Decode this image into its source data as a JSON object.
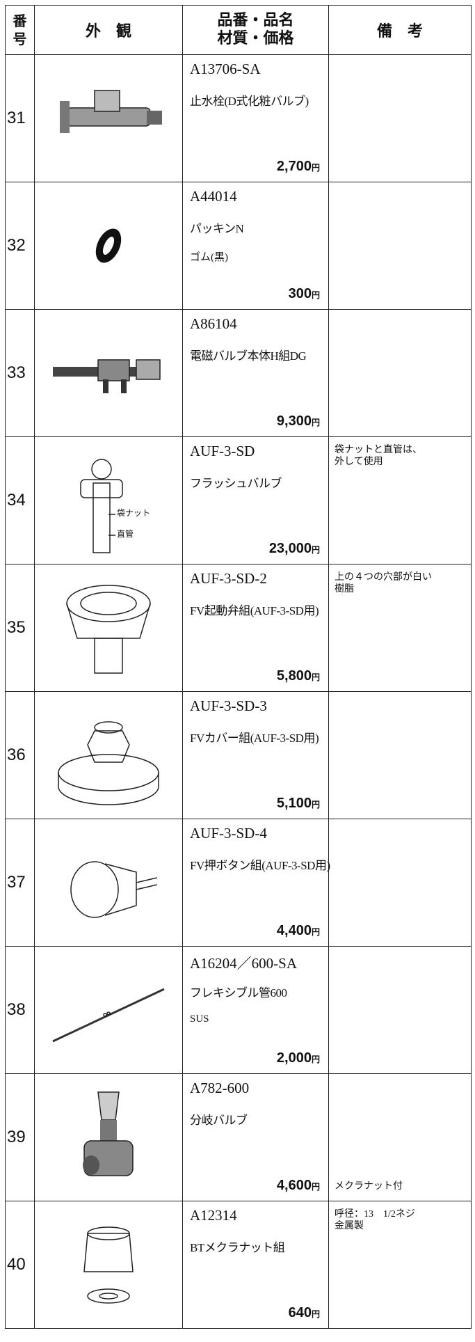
{
  "header": {
    "number": [
      "番",
      "号"
    ],
    "appearance": "外　観",
    "item": [
      "品番・品名",
      "材質・価格"
    ],
    "remarks": "備　考"
  },
  "currency": "円",
  "rows": [
    {
      "number": "31",
      "part_no": "A13706-SA",
      "name": "止水栓(D式化粧バルブ)",
      "price": "2,700"
    },
    {
      "number": "32",
      "part_no": "A44014",
      "name": "パッキンN",
      "material": "ゴム(黒)",
      "price": "300"
    },
    {
      "number": "33",
      "part_no": "A86104",
      "name": "電磁バルブ本体H組DG",
      "price": "9,300"
    },
    {
      "number": "34",
      "part_no": "AUF-3-SD",
      "name": "フラッシュバルブ",
      "price": "23,000",
      "remarks": [
        "袋ナットと直管は、",
        "外して使用"
      ],
      "callouts": [
        "袋ナット",
        "直管"
      ]
    },
    {
      "number": "35",
      "part_no": "AUF-3-SD-2",
      "name": "FV起動弁組(AUF-3-SD用)",
      "price": "5,800",
      "remarks": [
        "上の４つの穴部が白い",
        "樹脂"
      ]
    },
    {
      "number": "36",
      "part_no": "AUF-3-SD-3",
      "name": "FVカバー組(AUF-3-SD用)",
      "price": "5,100"
    },
    {
      "number": "37",
      "part_no": "AUF-3-SD-4",
      "name": "FV押ボタン組(AUF-3-SD用)",
      "price": "4,400"
    },
    {
      "number": "38",
      "part_no": "A16204／600-SA",
      "name": "フレキシブル管600",
      "material": "SUS",
      "price": "2,000"
    },
    {
      "number": "39",
      "part_no": "A782-600",
      "name": "分岐バルブ",
      "price": "4,600",
      "remarks": [
        "メクラナット付"
      ]
    },
    {
      "number": "40",
      "part_no": "A12314",
      "name": "BTメクラナット組",
      "price": "640",
      "remarks": [
        "呼径：13　1/2ネジ",
        "金属製"
      ]
    }
  ]
}
